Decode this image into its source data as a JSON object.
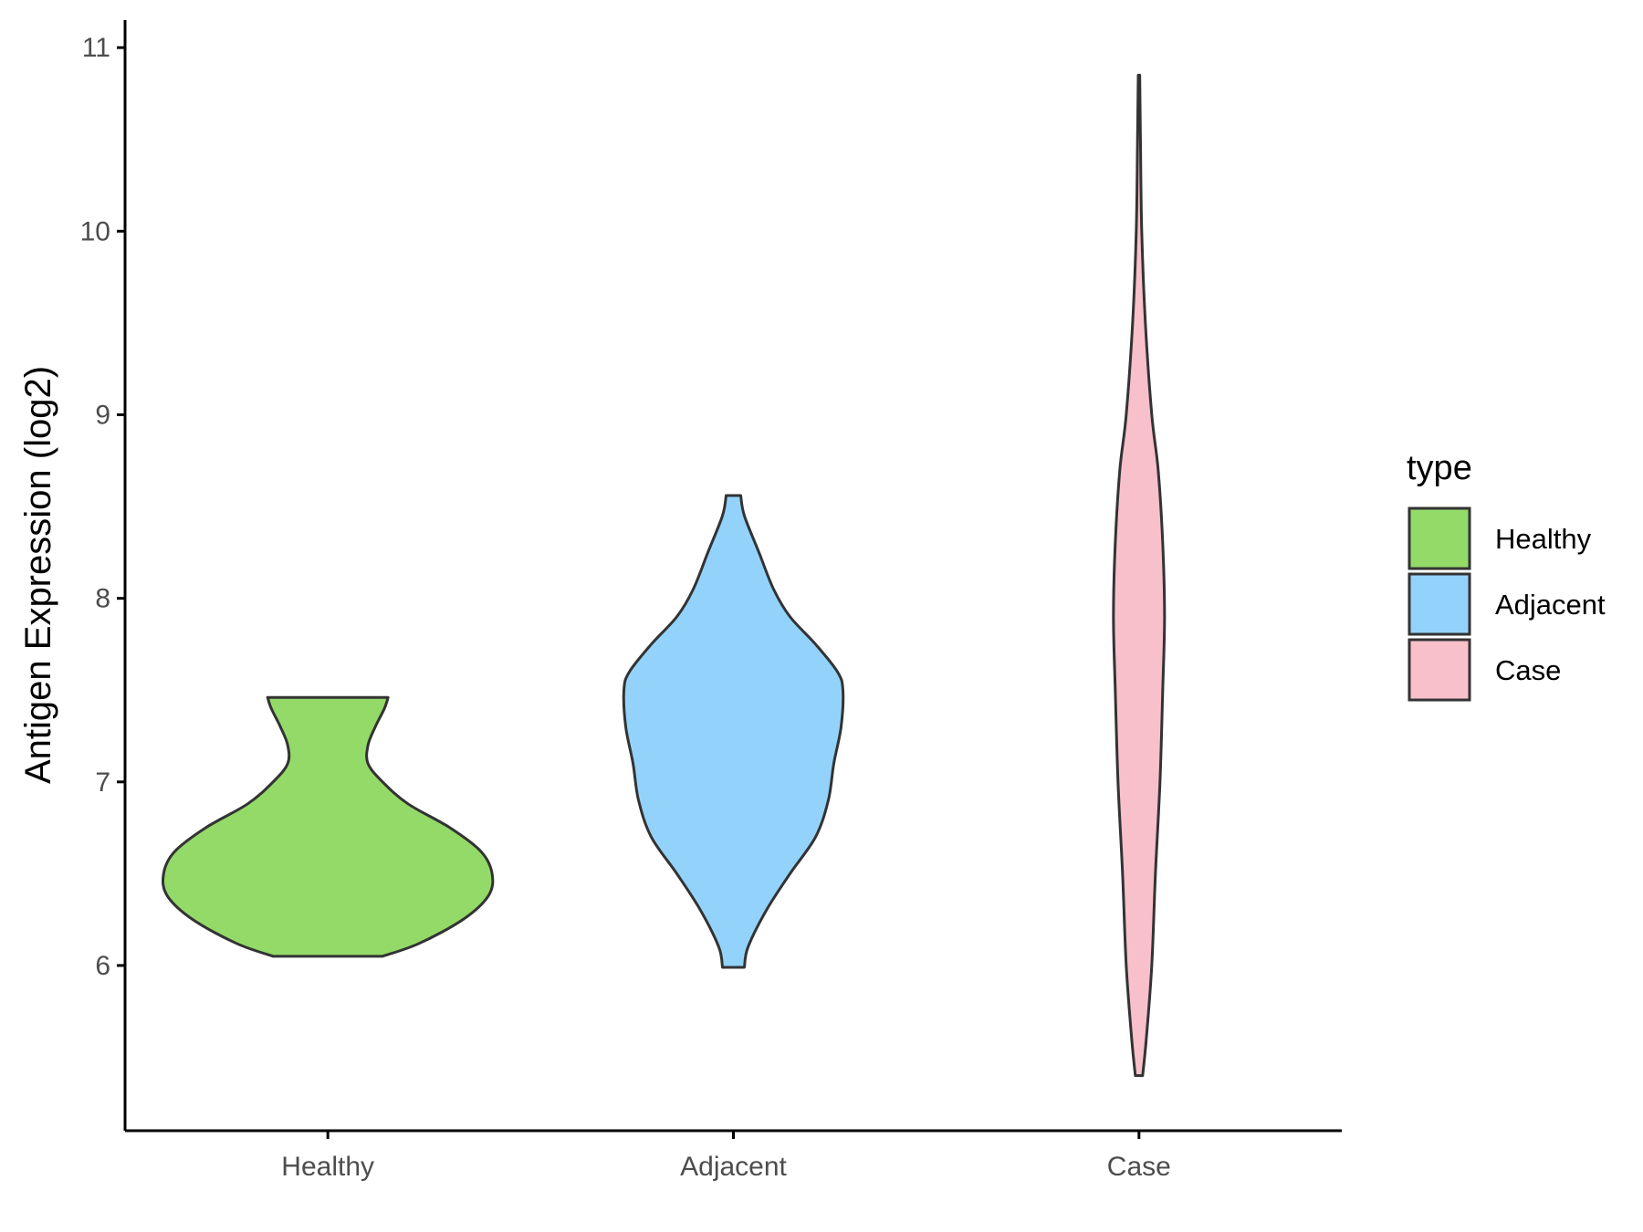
{
  "chart_data": {
    "type": "violin",
    "ylabel": "Antigen Expression (log2)",
    "xlabel": "",
    "categories": [
      "Healthy",
      "Adjacent",
      "Case"
    ],
    "ylim": [
      5.1,
      11.15
    ],
    "yticks": [
      6,
      7,
      8,
      9,
      10,
      11
    ],
    "grid": false,
    "legend": {
      "title": "type",
      "position": "right",
      "entries": [
        "Healthy",
        "Adjacent",
        "Case"
      ]
    },
    "series": [
      {
        "name": "Healthy",
        "color": "#93DA69",
        "min": 6.05,
        "max": 7.46,
        "profile": [
          {
            "y": 6.05,
            "w": 0.3
          },
          {
            "y": 6.12,
            "w": 0.5
          },
          {
            "y": 6.25,
            "w": 0.74
          },
          {
            "y": 6.38,
            "w": 0.88
          },
          {
            "y": 6.5,
            "w": 0.9
          },
          {
            "y": 6.62,
            "w": 0.84
          },
          {
            "y": 6.75,
            "w": 0.67
          },
          {
            "y": 6.88,
            "w": 0.44
          },
          {
            "y": 7.0,
            "w": 0.3
          },
          {
            "y": 7.1,
            "w": 0.22
          },
          {
            "y": 7.2,
            "w": 0.22
          },
          {
            "y": 7.3,
            "w": 0.26
          },
          {
            "y": 7.4,
            "w": 0.31
          },
          {
            "y": 7.46,
            "w": 0.33
          }
        ]
      },
      {
        "name": "Adjacent",
        "color": "#93D3FB",
        "min": 5.99,
        "max": 8.56,
        "profile": [
          {
            "y": 5.99,
            "w": 0.06
          },
          {
            "y": 6.1,
            "w": 0.08
          },
          {
            "y": 6.3,
            "w": 0.18
          },
          {
            "y": 6.5,
            "w": 0.31
          },
          {
            "y": 6.7,
            "w": 0.45
          },
          {
            "y": 6.9,
            "w": 0.52
          },
          {
            "y": 7.1,
            "w": 0.55
          },
          {
            "y": 7.3,
            "w": 0.59
          },
          {
            "y": 7.5,
            "w": 0.6
          },
          {
            "y": 7.6,
            "w": 0.57
          },
          {
            "y": 7.75,
            "w": 0.45
          },
          {
            "y": 7.9,
            "w": 0.31
          },
          {
            "y": 8.05,
            "w": 0.22
          },
          {
            "y": 8.25,
            "w": 0.14
          },
          {
            "y": 8.45,
            "w": 0.06
          },
          {
            "y": 8.56,
            "w": 0.04
          }
        ]
      },
      {
        "name": "Case",
        "color": "#F7C0CB",
        "min": 5.4,
        "max": 10.85,
        "profile": [
          {
            "y": 5.4,
            "w": 0.02
          },
          {
            "y": 5.6,
            "w": 0.04
          },
          {
            "y": 6.0,
            "w": 0.07
          },
          {
            "y": 6.5,
            "w": 0.09
          },
          {
            "y": 7.0,
            "w": 0.115
          },
          {
            "y": 7.5,
            "w": 0.13
          },
          {
            "y": 7.9,
            "w": 0.14
          },
          {
            "y": 8.3,
            "w": 0.13
          },
          {
            "y": 8.7,
            "w": 0.105
          },
          {
            "y": 9.0,
            "w": 0.07
          },
          {
            "y": 9.5,
            "w": 0.035
          },
          {
            "y": 10.0,
            "w": 0.015
          },
          {
            "y": 10.5,
            "w": 0.008
          },
          {
            "y": 10.85,
            "w": 0.004
          }
        ]
      }
    ]
  }
}
